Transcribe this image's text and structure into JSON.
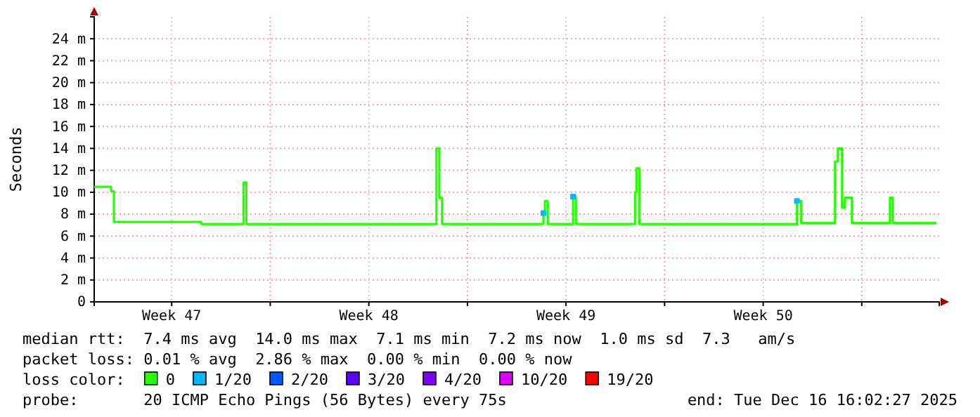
{
  "chart_data": {
    "type": "step",
    "ylabel": "Seconds",
    "legend_title": "loss color:",
    "legend": "bottom",
    "grid": true,
    "xlim": [
      "2025-11-16T16:00",
      "2025-12-16T16:00"
    ],
    "xticks": [
      {
        "value": "2025-11-19T10:00",
        "label": "Week 47"
      },
      {
        "value": "2025-11-22T22:00",
        "label": null
      },
      {
        "value": "2025-11-26T10:00",
        "label": "Week 48"
      },
      {
        "value": "2025-11-29T22:00",
        "label": null
      },
      {
        "value": "2025-12-03T10:00",
        "label": "Week 49"
      },
      {
        "value": "2025-12-06T22:00",
        "label": null
      },
      {
        "value": "2025-12-10T10:00",
        "label": "Week 50"
      },
      {
        "value": "2025-12-13T22:00",
        "label": null
      }
    ],
    "ylim": [
      0,
      26
    ],
    "yticks": [
      {
        "value": 0,
        "label": "0"
      },
      {
        "value": 2,
        "label": "2 m"
      },
      {
        "value": 4,
        "label": "4 m"
      },
      {
        "value": 6,
        "label": "6 m"
      },
      {
        "value": 8,
        "label": "8 m"
      },
      {
        "value": 10,
        "label": "10 m"
      },
      {
        "value": 12,
        "label": "12 m"
      },
      {
        "value": 14,
        "label": "14 m"
      },
      {
        "value": 16,
        "label": "16 m"
      },
      {
        "value": 18,
        "label": "18 m"
      },
      {
        "value": 20,
        "label": "20 m"
      },
      {
        "value": 22,
        "label": "22 m"
      },
      {
        "value": 24,
        "label": "24 m"
      }
    ],
    "annotations": [
      "median rtt:  7.4 ms avg  14.0 ms max  7.1 ms min  7.2 ms now  1.0 ms sd  7.3   am/s",
      "packet loss: 0.01 % avg  2.86 % max  0.00 % min  0.00 % now",
      "probe:       20 ICMP Echo Pings (56 Bytes) every 75s",
      "end: Tue Dec 16 16:02:27 2025"
    ],
    "series": [
      {
        "name": "0",
        "color": "#26ff00",
        "x": [
          "2025-11-16T16:00",
          "2025-11-17T06:24",
          "2025-11-17T08:48",
          "2025-11-20T11:12",
          "2025-11-21T23:12",
          "2025-11-22T01:36",
          "2025-11-28T19:36",
          "2025-11-28T22:00",
          "2025-11-29T00:24",
          "2025-12-02T14:48",
          "2025-12-02T16:00",
          "2025-12-02T18:24",
          "2025-12-03T16:00",
          "2025-12-03T18:24",
          "2025-12-05T20:48",
          "2025-12-05T22:00",
          "2025-12-06T00:24",
          "2025-12-11T14:48",
          "2025-12-11T18:24",
          "2025-12-12T23:12",
          "2025-12-13T01:36",
          "2025-12-13T05:12",
          "2025-12-13T07:36",
          "2025-12-13T13:36",
          "2025-12-14T22:00",
          "2025-12-15T00:24",
          "2025-12-16T13:36"
        ],
        "values": [
          10.5,
          10.1,
          7.3,
          7.1,
          10.9,
          7.1,
          14.0,
          9.5,
          7.1,
          8.1,
          9.2,
          7.1,
          9.6,
          7.1,
          10.0,
          12.2,
          7.1,
          9.2,
          7.2,
          12.8,
          14.0,
          8.6,
          9.5,
          7.2,
          9.5,
          7.2,
          7.2
        ]
      },
      {
        "name": "1/20",
        "type": "scatter",
        "color": "#00b8ff",
        "x": [
          "2025-12-02T14:48",
          "2025-12-03T16:00",
          "2025-12-11T14:48"
        ],
        "values": [
          8.1,
          9.6,
          9.2
        ]
      },
      {
        "name": "2/20",
        "type": "scatter",
        "color": "#0059ff"
      },
      {
        "name": "3/20",
        "type": "scatter",
        "color": "#5e00ff"
      },
      {
        "name": "4/20",
        "type": "scatter",
        "color": "#7e00ff"
      },
      {
        "name": "10/20",
        "type": "scatter",
        "color": "#dd00ff"
      },
      {
        "name": "19/20",
        "type": "scatter",
        "color": "#ff0000"
      }
    ]
  }
}
